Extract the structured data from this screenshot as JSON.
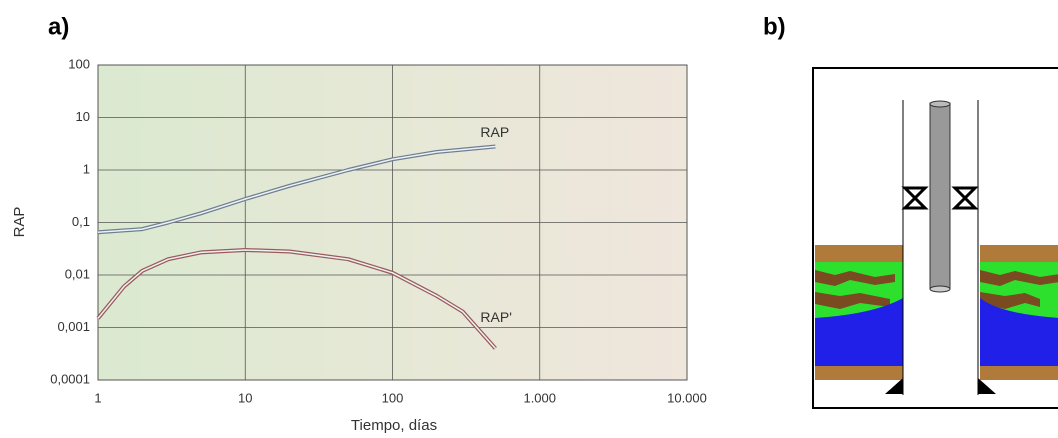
{
  "panel_labels": [
    "a)",
    "b)"
  ],
  "chart_data": {
    "type": "line",
    "xlabel": "Tiempo, días",
    "ylabel": "RAP",
    "log_x": true,
    "log_y": true,
    "grid": true,
    "xlim": [
      1,
      10000
    ],
    "xticks": [
      1,
      10,
      100,
      {
        "value": 1000,
        "label": "1.000"
      },
      {
        "value": 10000,
        "label": "10.000"
      }
    ],
    "ylim": [
      0.0001,
      100
    ],
    "yticks": [
      {
        "value": 0.0001,
        "label": "0,0001"
      },
      {
        "value": 0.001,
        "label": "0,001"
      },
      {
        "value": 0.01,
        "label": "0,01"
      },
      {
        "value": 0.1,
        "label": "0,1"
      },
      1,
      10,
      100
    ],
    "series": [
      {
        "name": "RAP",
        "color": "#6f7f93",
        "x": [
          1,
          2,
          3,
          5,
          10,
          20,
          50,
          100,
          200,
          500
        ],
        "values": [
          0.065,
          0.075,
          0.1,
          0.15,
          0.28,
          0.5,
          1.0,
          1.6,
          2.2,
          2.8
        ]
      },
      {
        "name": "RAP'",
        "color": "#9a5a5a",
        "x": [
          1,
          1.5,
          2,
          3,
          5,
          10,
          20,
          50,
          100,
          200,
          300,
          500
        ],
        "values": [
          0.0015,
          0.006,
          0.012,
          0.02,
          0.027,
          0.03,
          0.028,
          0.02,
          0.011,
          0.004,
          0.002,
          0.0004
        ]
      }
    ]
  }
}
